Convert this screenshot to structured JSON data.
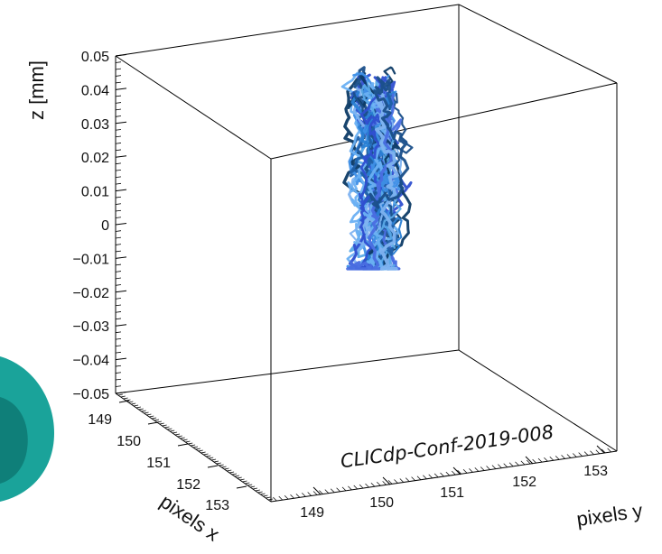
{
  "chart_data": {
    "type": "scatter",
    "subtype": "3d-trajectory",
    "title": "",
    "xlabel": "pixels x",
    "ylabel": "pixels y",
    "zlabel": "z [mm]",
    "xlim": [
      149,
      153
    ],
    "ylim": [
      149,
      153
    ],
    "zlim": [
      -0.05,
      0.05
    ],
    "x_ticks": [
      "149",
      "150",
      "151",
      "152",
      "153"
    ],
    "y_ticks": [
      "149",
      "150",
      "151",
      "152",
      "153"
    ],
    "z_ticks": [
      "0.05",
      "0.04",
      "0.03",
      "0.02",
      "0.01",
      "0",
      "−0.01",
      "−0.02",
      "−0.03",
      "−0.04",
      "−0.05"
    ],
    "grid": false,
    "annotation": "CLICdp-Conf-2019-008",
    "trajectory_colors": [
      "#0d3b66",
      "#1f5fa8",
      "#2a7fd4",
      "#3f8fe6",
      "#5aa9e6",
      "#6ab0f3",
      "#2f4fd0",
      "#4a6ee0",
      "#7fb3f0",
      "#1a4f8a"
    ],
    "trajectory_count": 40,
    "cluster_center": {
      "x": 151,
      "y": 151,
      "z": 0.02
    },
    "z_extent": [
      -0.012,
      0.045
    ]
  }
}
